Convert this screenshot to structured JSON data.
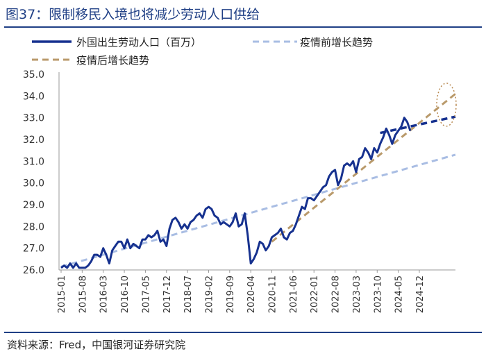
{
  "figure": {
    "title": "图37：限制移民入境也将减少劳动人口供给",
    "source": "资料来源：Fred，中国银河证券研究院"
  },
  "colors": {
    "title": "#1f3f85",
    "actual": "#16318f",
    "pre_trend": "#a9bde3",
    "post_trend": "#b99a6b",
    "highlight": "#b98a52"
  },
  "chart_data": {
    "type": "line",
    "y_unit": "百万",
    "ylim": [
      26.0,
      35.0
    ],
    "yticks": [
      "26.0",
      "27.0",
      "28.0",
      "29.0",
      "30.0",
      "31.0",
      "32.0",
      "33.0",
      "34.0",
      "35.0"
    ],
    "xlim": [
      "2015-01",
      "2025-12"
    ],
    "xticks": [
      "2015-01",
      "2015-08",
      "2016-03",
      "2016-10",
      "2017-05",
      "2017-12",
      "2018-07",
      "2019-02",
      "2019-09",
      "2020-04",
      "2020-11",
      "2021-06",
      "2022-01",
      "2022-08",
      "2023-03",
      "2023-10",
      "2024-05",
      "2024-12"
    ],
    "legend_position": "top",
    "grid": false,
    "annotation": "dotted ellipse around end of post-pandemic trend (~2025-09, ~33.6)",
    "series": [
      {
        "name": "外国出生劳动人口（百万）",
        "style": "solid",
        "points": [
          [
            "2015-01",
            26.1
          ],
          [
            "2015-02",
            26.2
          ],
          [
            "2015-03",
            26.1
          ],
          [
            "2015-04",
            26.3
          ],
          [
            "2015-05",
            26.1
          ],
          [
            "2015-06",
            26.3
          ],
          [
            "2015-07",
            26.1
          ],
          [
            "2015-08",
            26.1
          ],
          [
            "2015-09",
            26.1
          ],
          [
            "2015-10",
            26.2
          ],
          [
            "2015-11",
            26.4
          ],
          [
            "2015-12",
            26.7
          ],
          [
            "2016-01",
            26.7
          ],
          [
            "2016-02",
            26.6
          ],
          [
            "2016-03",
            27.0
          ],
          [
            "2016-04",
            26.7
          ],
          [
            "2016-05",
            26.3
          ],
          [
            "2016-06",
            26.9
          ],
          [
            "2016-07",
            27.1
          ],
          [
            "2016-08",
            27.3
          ],
          [
            "2016-09",
            27.3
          ],
          [
            "2016-10",
            27.0
          ],
          [
            "2016-11",
            27.4
          ],
          [
            "2016-12",
            27.0
          ],
          [
            "2017-01",
            27.2
          ],
          [
            "2017-02",
            27.1
          ],
          [
            "2017-03",
            27.0
          ],
          [
            "2017-04",
            27.4
          ],
          [
            "2017-05",
            27.4
          ],
          [
            "2017-06",
            27.6
          ],
          [
            "2017-07",
            27.5
          ],
          [
            "2017-08",
            27.6
          ],
          [
            "2017-09",
            27.8
          ],
          [
            "2017-10",
            27.3
          ],
          [
            "2017-11",
            27.4
          ],
          [
            "2017-12",
            27.1
          ],
          [
            "2018-01",
            27.9
          ],
          [
            "2018-02",
            28.3
          ],
          [
            "2018-03",
            28.4
          ],
          [
            "2018-04",
            28.2
          ],
          [
            "2018-05",
            27.9
          ],
          [
            "2018-06",
            28.1
          ],
          [
            "2018-07",
            27.9
          ],
          [
            "2018-08",
            28.2
          ],
          [
            "2018-09",
            28.3
          ],
          [
            "2018-10",
            28.5
          ],
          [
            "2018-11",
            28.6
          ],
          [
            "2018-12",
            28.4
          ],
          [
            "2019-01",
            28.8
          ],
          [
            "2019-02",
            28.9
          ],
          [
            "2019-03",
            28.8
          ],
          [
            "2019-04",
            28.5
          ],
          [
            "2019-05",
            28.4
          ],
          [
            "2019-06",
            28.1
          ],
          [
            "2019-07",
            28.2
          ],
          [
            "2019-08",
            28.1
          ],
          [
            "2019-09",
            28.0
          ],
          [
            "2019-10",
            28.2
          ],
          [
            "2019-11",
            28.6
          ],
          [
            "2019-12",
            28.0
          ],
          [
            "2020-01",
            28.1
          ],
          [
            "2020-02",
            28.6
          ],
          [
            "2020-03",
            27.6
          ],
          [
            "2020-04",
            26.3
          ],
          [
            "2020-05",
            26.5
          ],
          [
            "2020-06",
            26.8
          ],
          [
            "2020-07",
            27.3
          ],
          [
            "2020-08",
            27.2
          ],
          [
            "2020-09",
            26.9
          ],
          [
            "2020-10",
            27.1
          ],
          [
            "2020-11",
            27.5
          ],
          [
            "2020-12",
            27.6
          ],
          [
            "2021-01",
            27.7
          ],
          [
            "2021-02",
            27.9
          ],
          [
            "2021-03",
            27.5
          ],
          [
            "2021-04",
            27.4
          ],
          [
            "2021-05",
            27.7
          ],
          [
            "2021-06",
            27.8
          ],
          [
            "2021-07",
            28.1
          ],
          [
            "2021-08",
            28.5
          ],
          [
            "2021-09",
            28.9
          ],
          [
            "2021-10",
            28.8
          ],
          [
            "2021-11",
            29.3
          ],
          [
            "2021-12",
            29.3
          ],
          [
            "2022-01",
            29.2
          ],
          [
            "2022-02",
            29.4
          ],
          [
            "2022-03",
            29.6
          ],
          [
            "2022-04",
            29.8
          ],
          [
            "2022-05",
            29.9
          ],
          [
            "2022-06",
            30.3
          ],
          [
            "2022-07",
            30.5
          ],
          [
            "2022-08",
            30.6
          ],
          [
            "2022-09",
            29.9
          ],
          [
            "2022-10",
            30.2
          ],
          [
            "2022-11",
            30.8
          ],
          [
            "2022-12",
            30.9
          ],
          [
            "2023-01",
            30.8
          ],
          [
            "2023-02",
            31.0
          ],
          [
            "2023-03",
            30.5
          ],
          [
            "2023-04",
            31.1
          ],
          [
            "2023-05",
            31.2
          ],
          [
            "2023-06",
            31.6
          ],
          [
            "2023-07",
            31.4
          ],
          [
            "2023-08",
            31.1
          ],
          [
            "2023-09",
            31.6
          ],
          [
            "2023-10",
            31.4
          ],
          [
            "2023-11",
            31.8
          ],
          [
            "2023-12",
            32.1
          ],
          [
            "2024-01",
            32.5
          ],
          [
            "2024-02",
            32.2
          ],
          [
            "2024-03",
            31.8
          ],
          [
            "2024-04",
            32.2
          ],
          [
            "2024-05",
            32.4
          ],
          [
            "2024-06",
            32.6
          ],
          [
            "2024-07",
            33.0
          ],
          [
            "2024-08",
            32.8
          ],
          [
            "2024-09",
            32.4
          ]
        ]
      },
      {
        "name": "",
        "style": "dashed-bold",
        "points": [
          [
            "2023-11",
            32.3
          ],
          [
            "2025-12",
            33.05
          ]
        ]
      },
      {
        "name": "疫情前增长趋势",
        "style": "dashed",
        "points": [
          [
            "2015-01",
            26.15
          ],
          [
            "2025-12",
            31.3
          ]
        ]
      },
      {
        "name": "疫情后增长趋势",
        "style": "dashed",
        "points": [
          [
            "2020-11",
            27.3
          ],
          [
            "2025-12",
            34.1
          ]
        ]
      }
    ]
  }
}
